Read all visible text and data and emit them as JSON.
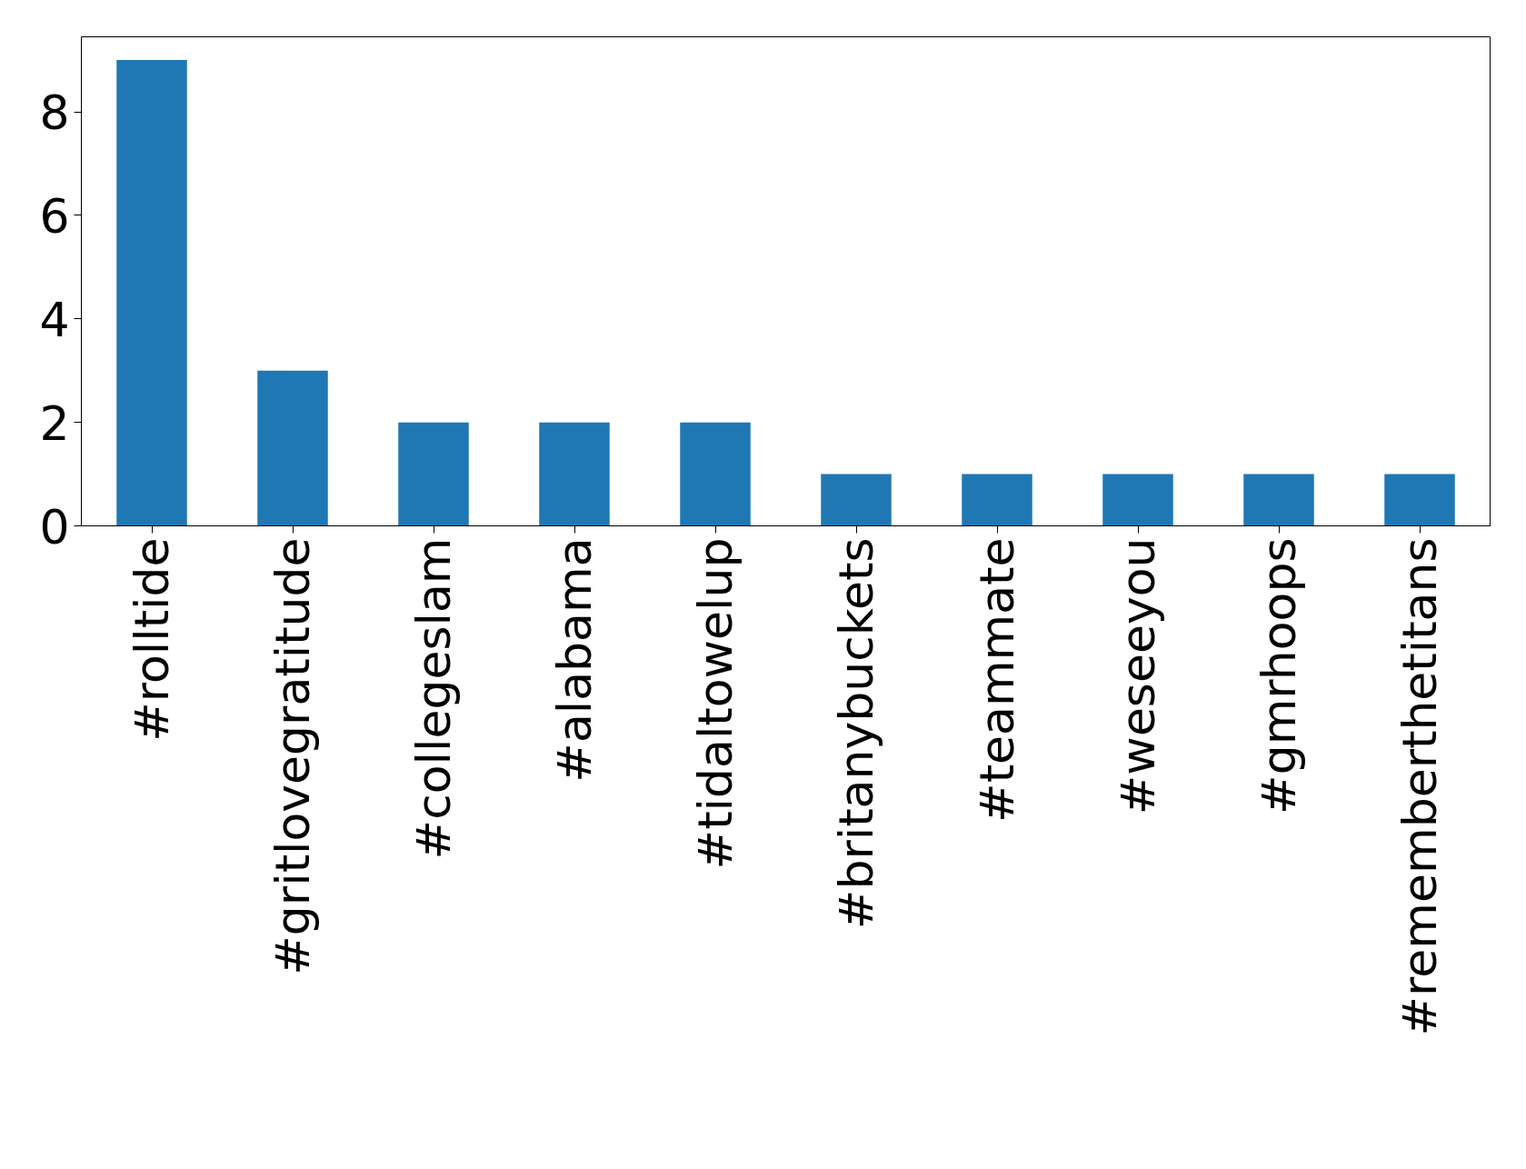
{
  "chart_data": {
    "type": "bar",
    "categories": [
      "#rolltide",
      "#gritlovegratitude",
      "#collegeslam",
      "#alabama",
      "#tidaltowelup",
      "#britanybuckets",
      "#teammate",
      "#weseeyou",
      "#gmrhoops",
      "#rememberthetitans"
    ],
    "values": [
      9,
      3,
      2,
      2,
      2,
      1,
      1,
      1,
      1,
      1
    ],
    "color": "#1f77b4",
    "ylim": [
      0,
      9.45
    ],
    "yticks": [
      0,
      2,
      4,
      6,
      8
    ],
    "grid": false
  }
}
